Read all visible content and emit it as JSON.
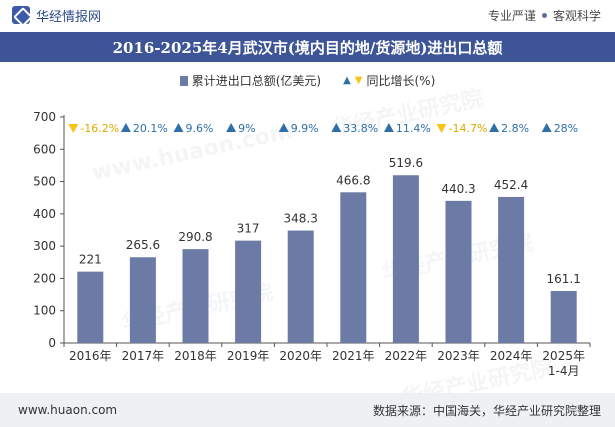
{
  "header": {
    "brand_name": "华经情报网",
    "tag_left": "专业严谨",
    "tag_right": "客观科学"
  },
  "title": "2016-2025年4月武汉市(境内目的地/货源地)进出口总额",
  "legend": {
    "bar_label": "累计进出口总额(亿美元)",
    "growth_label": "同比增长(%)"
  },
  "footer": {
    "website": "www.huaon.com",
    "source": "数据来源：中国海关，华经产业研究院整理"
  },
  "watermarks": [
    "华经产业研究院",
    "www.huaon.com"
  ],
  "colors": {
    "bar": "#6b7ba5",
    "up_marker": "#2d6fa6",
    "down_marker": "#f5c518",
    "title_bg": "#3d5596"
  },
  "chart_data": {
    "type": "bar",
    "categories": [
      "2016年",
      "2017年",
      "2018年",
      "2019年",
      "2020年",
      "2021年",
      "2022年",
      "2023年",
      "2024年",
      "2025年\n1-4月"
    ],
    "series": [
      {
        "name": "累计进出口总额(亿美元)",
        "values": [
          221,
          265.6,
          290.8,
          317,
          348.3,
          466.8,
          519.6,
          440.3,
          452.4,
          161.1
        ]
      },
      {
        "name": "同比增长(%)",
        "values": [
          -16.2,
          20.1,
          9.6,
          9,
          9.9,
          33.8,
          11.4,
          -14.7,
          2.8,
          28
        ],
        "labels": [
          "-16.2%",
          "20.1%",
          "9.6%",
          "9%",
          "9.9%",
          "33.8%",
          "11.4%",
          "-14.7%",
          "2.8%",
          "28%"
        ]
      }
    ],
    "bar_labels": [
      "221",
      "265.6",
      "290.8",
      "317",
      "348.3",
      "466.8",
      "519.6",
      "440.3",
      "452.4",
      "161.1"
    ],
    "ylim": [
      0,
      700
    ],
    "yticks": [
      0,
      100,
      200,
      300,
      400,
      500,
      600,
      700
    ],
    "grid": false,
    "legend_position": "top-center"
  }
}
